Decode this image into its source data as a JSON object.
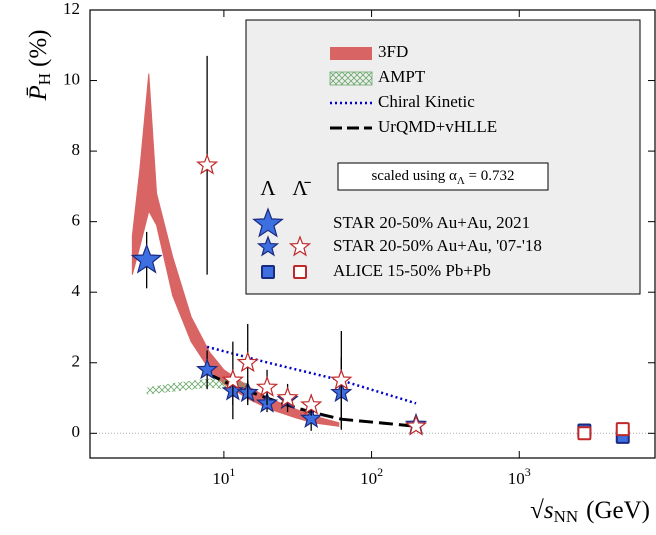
{
  "chart_data": {
    "type": "polarization",
    "ylabel": {
      "text": "P̄",
      "sub": "H",
      "unit": "(%)"
    },
    "xlabel": {
      "text": "√s",
      "sub": "NN",
      "unit": "(GeV)"
    },
    "xscale": "log",
    "xlim": [
      1.24,
      8300
    ],
    "ylim": [
      -0.7,
      12
    ],
    "xticks": [
      {
        "value": 10,
        "label": "10",
        "exponent": "1"
      },
      {
        "value": 100,
        "label": "10",
        "exponent": "2"
      },
      {
        "value": 1000,
        "label": "10",
        "exponent": "3"
      }
    ],
    "yticks": [
      0,
      2,
      4,
      6,
      8,
      10,
      12
    ],
    "zero_line": true,
    "legend_columns": [
      "Λ",
      "Λ̄"
    ],
    "annotation": {
      "text": "scaled using α",
      "sub": "Λ",
      "rest": " = 0.732"
    },
    "series": [
      {
        "name": "3FD",
        "kind": "band",
        "color": "#d96464",
        "x": [
          2.4,
          2.7,
          3.1,
          3.5,
          4.5,
          6,
          8,
          10,
          15,
          20,
          30,
          40,
          60
        ],
        "upper": [
          5.6,
          7.5,
          10.2,
          6.8,
          5.0,
          3.3,
          2.3,
          1.8,
          1.3,
          1.0,
          0.7,
          0.5,
          0.3
        ],
        "lower": [
          4.5,
          5.3,
          6.3,
          5.9,
          3.9,
          2.6,
          1.8,
          1.4,
          0.95,
          0.7,
          0.45,
          0.3,
          0.2
        ]
      },
      {
        "name": "AMPT",
        "kind": "hatch",
        "color": "#6aa86a",
        "x": [
          3,
          5,
          8,
          12,
          15
        ],
        "upper": [
          1.3,
          1.45,
          1.55,
          1.5,
          1.4
        ],
        "lower": [
          1.1,
          1.2,
          1.3,
          1.2,
          1.1
        ]
      },
      {
        "name": "Chiral Kinetic",
        "kind": "dotted",
        "color": "#0000cc",
        "x": [
          7.7,
          20,
          62.4,
          200
        ],
        "values": [
          2.45,
          2.0,
          1.5,
          0.85
        ]
      },
      {
        "name": "UrQMD+vHLLE",
        "kind": "dashed",
        "color": "#000000",
        "x": [
          7.7,
          11.5,
          19.6,
          27,
          39,
          62.4,
          200
        ],
        "values": [
          1.7,
          1.35,
          1.0,
          0.8,
          0.6,
          0.4,
          0.2
        ]
      },
      {
        "name": "STAR 20-50% Au+Au, 2021",
        "kind": "points",
        "sets": [
          {
            "marker": "big-star",
            "fill": "#3d6fe0",
            "stroke": "#1a2a80",
            "x": [
              3
            ],
            "values": [
              4.91
            ],
            "errors": [
              0.8
            ]
          }
        ]
      },
      {
        "name": "STAR 20-50% Au+Au, '07-'18",
        "kind": "points",
        "sets": [
          {
            "marker": "star",
            "fill": "#3d6fe0",
            "stroke": "#1a2a80",
            "x": [
              7.7,
              11.5,
              14.5,
              19.6,
              27,
              39,
              62.4,
              200
            ],
            "values": [
              1.8,
              1.2,
              1.15,
              0.85,
              0.95,
              0.42,
              1.15,
              0.25
            ],
            "errors": [
              0.55,
              0.4,
              0.35,
              0.25,
              0.2,
              0.35,
              1.0,
              0.1
            ]
          },
          {
            "marker": "star",
            "fill": "#ffffff",
            "stroke": "#c0282a",
            "x": [
              7.7,
              11.5,
              14.5,
              19.6,
              27,
              39,
              62.4,
              200
            ],
            "values": [
              7.6,
              1.5,
              2.0,
              1.3,
              1.0,
              0.8,
              1.5,
              0.2
            ],
            "errors": [
              3.1,
              1.1,
              1.1,
              0.5,
              0.4,
              0.3,
              1.4,
              0.1
            ]
          }
        ]
      },
      {
        "name": "ALICE 15-50% Pb+Pb",
        "kind": "points",
        "sets": [
          {
            "marker": "square",
            "fill": "#3d6fe0",
            "stroke": "#1a2a80",
            "x": [
              2760,
              5020
            ],
            "values": [
              0.08,
              -0.1
            ]
          },
          {
            "marker": "square",
            "fill": "#ffffff",
            "stroke": "#c0282a",
            "x": [
              2760,
              5020
            ],
            "values": [
              0.0,
              0.12
            ]
          }
        ]
      }
    ]
  }
}
